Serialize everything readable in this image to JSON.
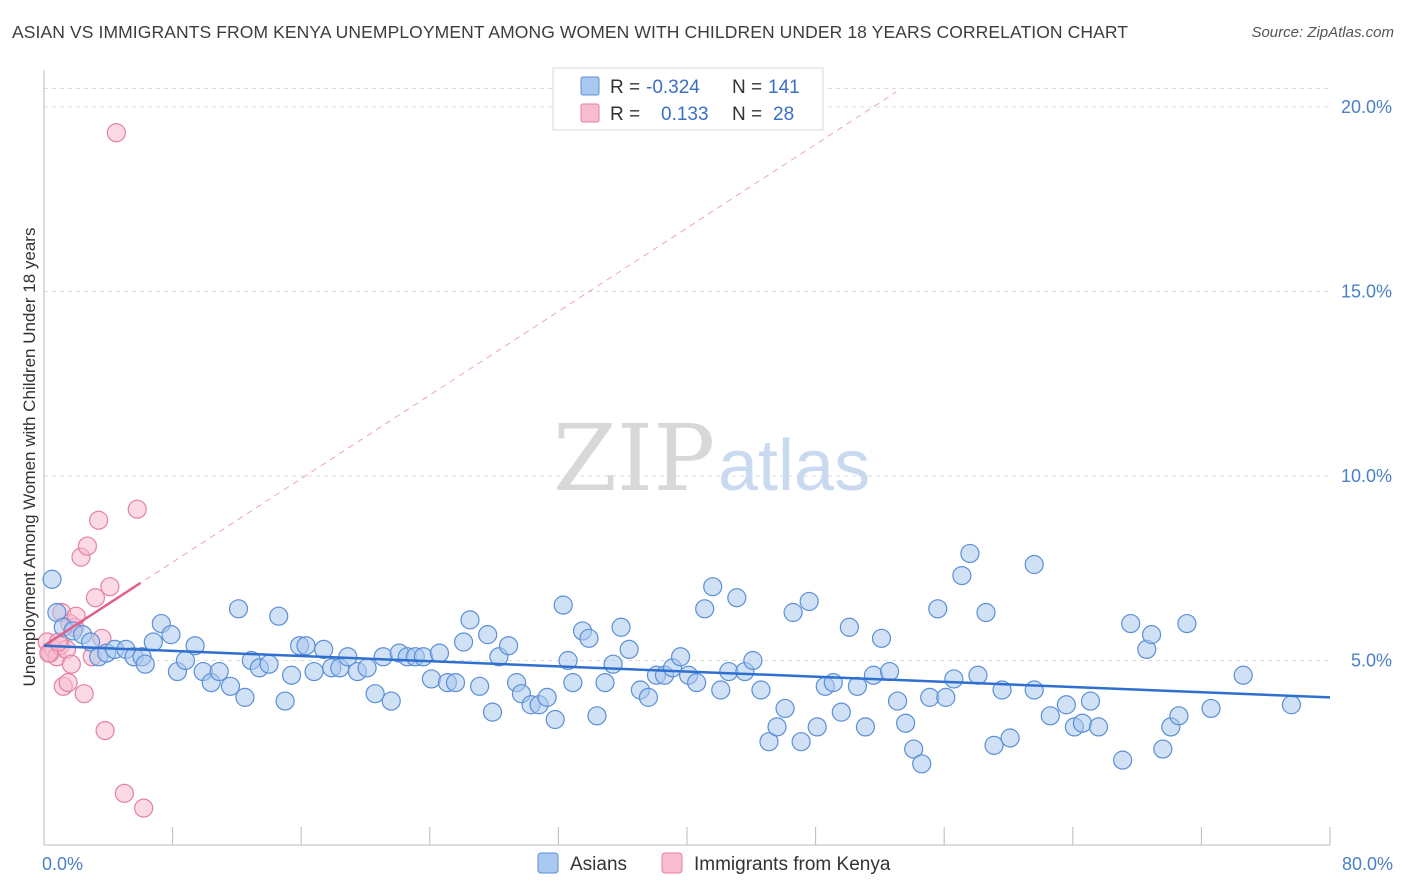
{
  "header": {
    "title": "ASIAN VS IMMIGRANTS FROM KENYA UNEMPLOYMENT AMONG WOMEN WITH CHILDREN UNDER 18 YEARS CORRELATION CHART",
    "source": "Source: ZipAtlas.com"
  },
  "watermark": {
    "zip": "ZIP",
    "atlas": "atlas"
  },
  "colors": {
    "asian_fill": "#aac8ef",
    "asian_stroke": "#5b8fd6",
    "asian_line": "#2f6fd0",
    "kenya_fill": "#f7bcd0",
    "kenya_stroke": "#e57fa2",
    "kenya_line": "#e0608c",
    "tick_text": "#4a80c8",
    "grid": "#dddddd"
  },
  "legend": {
    "rows": [
      {
        "r_label": "R =",
        "r_value": "-0.324",
        "n_label": "N =",
        "n_value": "141"
      },
      {
        "r_label": "R =",
        "r_value": "0.133",
        "n_label": "N =",
        "n_value": "28"
      }
    ]
  },
  "chart_data": {
    "type": "scatter",
    "xlabel": "",
    "ylabel": "Unemployment Among Women with Children Under 18 years",
    "xlim": [
      0,
      80
    ],
    "ylim": [
      0,
      21
    ],
    "x_tick_labels": [
      {
        "value": 0,
        "label": "0.0%"
      },
      {
        "value": 80,
        "label": "80.0%"
      }
    ],
    "x_minor_ticks": [
      8,
      16,
      24,
      32,
      40,
      48,
      56,
      64,
      72,
      80
    ],
    "y_ticks": [
      {
        "value": 5,
        "label": "5.0%"
      },
      {
        "value": 10,
        "label": "10.0%"
      },
      {
        "value": 15,
        "label": "15.0%"
      },
      {
        "value": 20,
        "label": "20.0%"
      }
    ],
    "grid": true,
    "legend_position": "top-center",
    "series": [
      {
        "name": "Asians",
        "trend": {
          "x": [
            0,
            80
          ],
          "y": [
            5.4,
            4.0
          ]
        },
        "points": [
          [
            0.5,
            7.2
          ],
          [
            0.8,
            6.3
          ],
          [
            1.2,
            5.9
          ],
          [
            1.8,
            5.8
          ],
          [
            2.4,
            5.7
          ],
          [
            2.9,
            5.5
          ],
          [
            3.4,
            5.1
          ],
          [
            3.9,
            5.2
          ],
          [
            4.4,
            5.3
          ],
          [
            5.1,
            5.3
          ],
          [
            5.6,
            5.1
          ],
          [
            6.1,
            5.1
          ],
          [
            6.3,
            4.9
          ],
          [
            6.8,
            5.5
          ],
          [
            7.3,
            6.0
          ],
          [
            7.9,
            5.7
          ],
          [
            8.3,
            4.7
          ],
          [
            8.8,
            5.0
          ],
          [
            9.4,
            5.4
          ],
          [
            9.9,
            4.7
          ],
          [
            10.4,
            4.4
          ],
          [
            10.9,
            4.7
          ],
          [
            11.6,
            4.3
          ],
          [
            12.1,
            6.4
          ],
          [
            12.5,
            4.0
          ],
          [
            12.9,
            5.0
          ],
          [
            13.4,
            4.8
          ],
          [
            14.0,
            4.9
          ],
          [
            14.6,
            6.2
          ],
          [
            15.0,
            3.9
          ],
          [
            15.4,
            4.6
          ],
          [
            15.9,
            5.4
          ],
          [
            16.3,
            5.4
          ],
          [
            16.8,
            4.7
          ],
          [
            17.4,
            5.3
          ],
          [
            17.9,
            4.8
          ],
          [
            18.4,
            4.8
          ],
          [
            18.9,
            5.1
          ],
          [
            19.5,
            4.7
          ],
          [
            20.1,
            4.8
          ],
          [
            20.6,
            4.1
          ],
          [
            21.1,
            5.1
          ],
          [
            21.6,
            3.9
          ],
          [
            22.1,
            5.2
          ],
          [
            22.6,
            5.1
          ],
          [
            23.1,
            5.1
          ],
          [
            23.6,
            5.1
          ],
          [
            24.1,
            4.5
          ],
          [
            24.6,
            5.2
          ],
          [
            25.1,
            4.4
          ],
          [
            25.6,
            4.4
          ],
          [
            26.1,
            5.5
          ],
          [
            26.5,
            6.1
          ],
          [
            27.1,
            4.3
          ],
          [
            27.6,
            5.7
          ],
          [
            27.9,
            3.6
          ],
          [
            28.3,
            5.1
          ],
          [
            28.9,
            5.4
          ],
          [
            29.4,
            4.4
          ],
          [
            29.7,
            4.1
          ],
          [
            30.3,
            3.8
          ],
          [
            30.8,
            3.8
          ],
          [
            31.3,
            4.0
          ],
          [
            31.8,
            3.4
          ],
          [
            32.3,
            6.5
          ],
          [
            32.6,
            5.0
          ],
          [
            32.9,
            4.4
          ],
          [
            33.5,
            5.8
          ],
          [
            33.9,
            5.6
          ],
          [
            34.4,
            3.5
          ],
          [
            34.9,
            4.4
          ],
          [
            35.4,
            4.9
          ],
          [
            35.9,
            5.9
          ],
          [
            36.4,
            5.3
          ],
          [
            37.1,
            4.2
          ],
          [
            37.6,
            4.0
          ],
          [
            38.1,
            4.6
          ],
          [
            38.6,
            4.6
          ],
          [
            39.1,
            4.8
          ],
          [
            39.6,
            5.1
          ],
          [
            40.1,
            4.6
          ],
          [
            40.6,
            4.4
          ],
          [
            41.1,
            6.4
          ],
          [
            41.6,
            7.0
          ],
          [
            42.1,
            4.2
          ],
          [
            42.6,
            4.7
          ],
          [
            43.1,
            6.7
          ],
          [
            43.6,
            4.7
          ],
          [
            44.1,
            5.0
          ],
          [
            44.6,
            4.2
          ],
          [
            45.1,
            2.8
          ],
          [
            45.6,
            3.2
          ],
          [
            46.1,
            3.7
          ],
          [
            46.6,
            6.3
          ],
          [
            47.1,
            2.8
          ],
          [
            47.6,
            6.6
          ],
          [
            48.1,
            3.2
          ],
          [
            48.6,
            4.3
          ],
          [
            49.1,
            4.4
          ],
          [
            49.6,
            3.6
          ],
          [
            50.1,
            5.9
          ],
          [
            50.6,
            4.3
          ],
          [
            51.1,
            3.2
          ],
          [
            51.6,
            4.6
          ],
          [
            52.1,
            5.6
          ],
          [
            52.6,
            4.7
          ],
          [
            53.1,
            3.9
          ],
          [
            53.6,
            3.3
          ],
          [
            54.1,
            2.6
          ],
          [
            54.6,
            2.2
          ],
          [
            55.1,
            4.0
          ],
          [
            55.6,
            6.4
          ],
          [
            56.1,
            4.0
          ],
          [
            56.6,
            4.5
          ],
          [
            57.1,
            7.3
          ],
          [
            57.6,
            7.9
          ],
          [
            58.1,
            4.6
          ],
          [
            58.6,
            6.3
          ],
          [
            59.1,
            2.7
          ],
          [
            59.6,
            4.2
          ],
          [
            60.1,
            2.9
          ],
          [
            61.6,
            7.6
          ],
          [
            61.6,
            4.2
          ],
          [
            62.6,
            3.5
          ],
          [
            63.6,
            3.8
          ],
          [
            64.1,
            3.2
          ],
          [
            64.6,
            3.3
          ],
          [
            65.1,
            3.9
          ],
          [
            65.6,
            3.2
          ],
          [
            67.1,
            2.3
          ],
          [
            67.6,
            6.0
          ],
          [
            68.6,
            5.3
          ],
          [
            68.9,
            5.7
          ],
          [
            69.6,
            2.6
          ],
          [
            70.1,
            3.2
          ],
          [
            70.6,
            3.5
          ],
          [
            71.1,
            6.0
          ],
          [
            72.6,
            3.7
          ],
          [
            74.6,
            4.6
          ],
          [
            77.6,
            3.8
          ]
        ]
      },
      {
        "name": "Immigrants from Kenya",
        "trend": {
          "x": [
            0,
            6
          ],
          "y": [
            5.4,
            7.1
          ]
        },
        "trend_extension": {
          "x": [
            0,
            53
          ],
          "y": [
            5.4,
            20.4
          ]
        },
        "points": [
          [
            0.2,
            5.5
          ],
          [
            0.4,
            5.2
          ],
          [
            0.6,
            5.3
          ],
          [
            0.8,
            5.1
          ],
          [
            1.0,
            5.4
          ],
          [
            1.1,
            6.3
          ],
          [
            1.2,
            4.3
          ],
          [
            1.4,
            5.3
          ],
          [
            1.5,
            4.4
          ],
          [
            1.6,
            6.0
          ],
          [
            1.7,
            4.9
          ],
          [
            1.9,
            5.9
          ],
          [
            2.0,
            6.2
          ],
          [
            2.3,
            7.8
          ],
          [
            2.5,
            4.1
          ],
          [
            2.7,
            8.1
          ],
          [
            3.0,
            5.1
          ],
          [
            3.2,
            6.7
          ],
          [
            3.4,
            8.8
          ],
          [
            3.6,
            5.6
          ],
          [
            3.8,
            3.1
          ],
          [
            4.1,
            7.0
          ],
          [
            4.5,
            19.3
          ],
          [
            5.0,
            1.4
          ],
          [
            5.8,
            9.1
          ],
          [
            6.2,
            1.0
          ],
          [
            0.3,
            5.2
          ],
          [
            0.9,
            5.5
          ]
        ]
      }
    ]
  }
}
